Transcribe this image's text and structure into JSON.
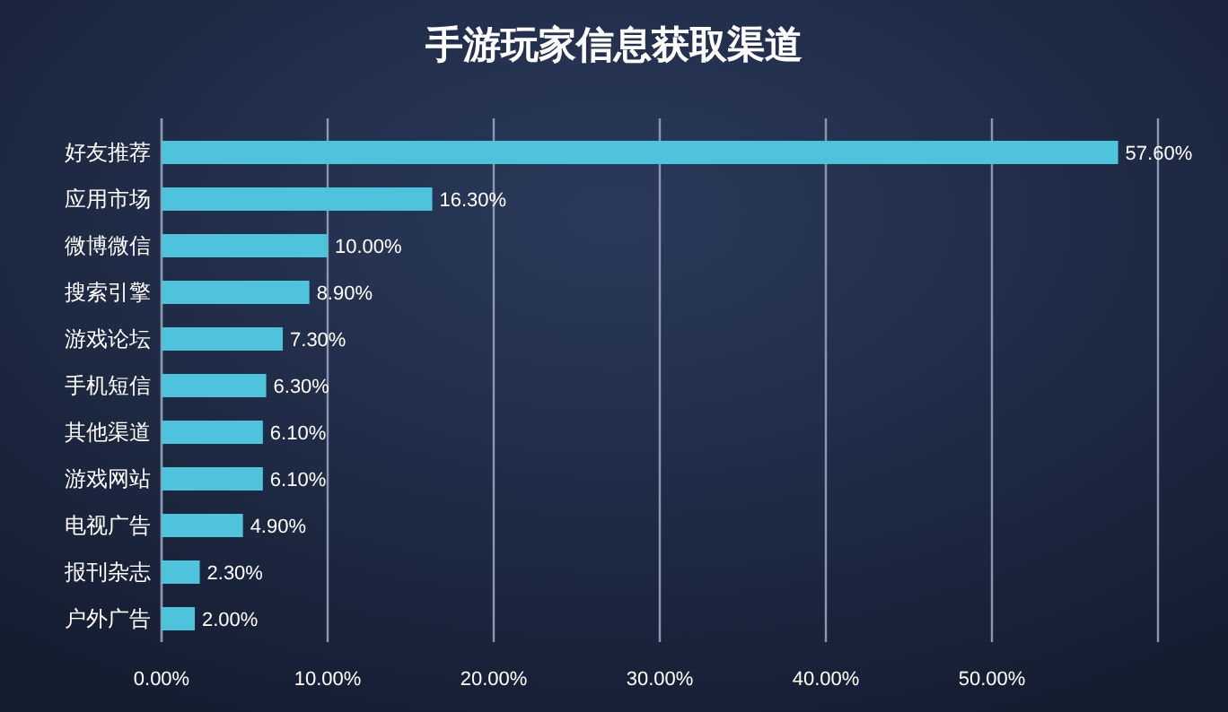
{
  "chart_data": {
    "type": "bar",
    "orientation": "horizontal",
    "title": "手游玩家信息获取渠道",
    "categories": [
      "好友推荐",
      "应用市场",
      "微博微信",
      "搜索引擎",
      "游戏论坛",
      "手机短信",
      "其他渠道",
      "游戏网站",
      "电视广告",
      "报刊杂志",
      "户外广告"
    ],
    "values": [
      57.6,
      16.3,
      10.0,
      8.9,
      7.3,
      6.3,
      6.1,
      6.1,
      4.9,
      2.3,
      2.0
    ],
    "value_labels": [
      "57.60%",
      "16.30%",
      "10.00%",
      "8.90%",
      "7.30%",
      "6.30%",
      "6.10%",
      "6.10%",
      "4.90%",
      "2.30%",
      "2.00%"
    ],
    "color": "#4fc3dc",
    "xlim": [
      0,
      60
    ],
    "xticks": [
      {
        "value": 0,
        "label": "0.00%"
      },
      {
        "value": 10,
        "label": "10.00%"
      },
      {
        "value": 20,
        "label": "20.00%"
      },
      {
        "value": 30,
        "label": "30.00%"
      },
      {
        "value": 40,
        "label": "40.00%"
      },
      {
        "value": 50,
        "label": "50.00%"
      },
      {
        "value": 60,
        "label": null
      }
    ],
    "grid": "x"
  }
}
